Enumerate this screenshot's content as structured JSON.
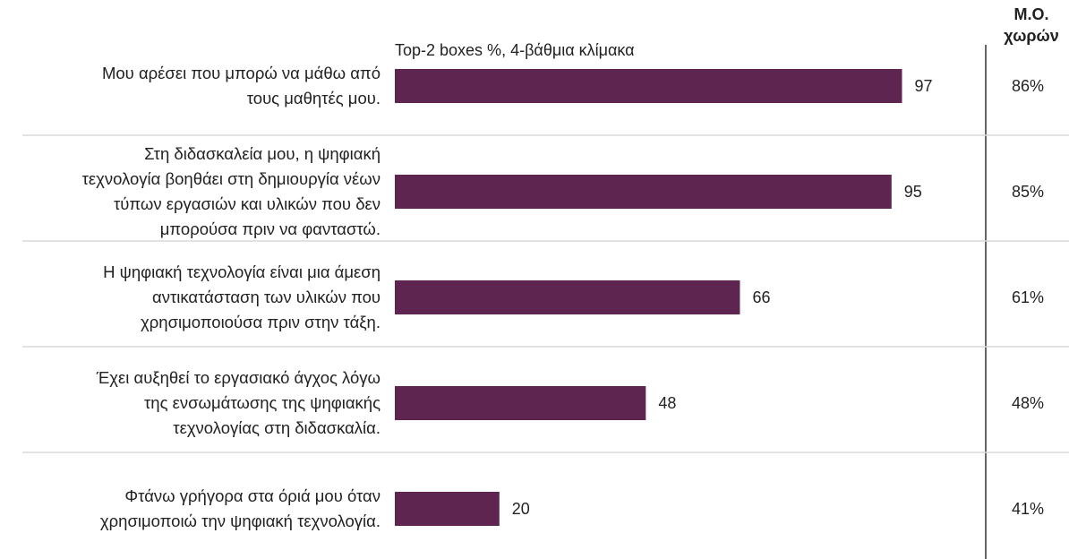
{
  "chart_data": {
    "type": "hbar",
    "subtitle": "Top-2 boxes %, 4-βάθμια κλίμακα",
    "categories": [
      "Μου αρέσει που μπορώ να μάθω από\nτους μαθητές μου.",
      "Στη διδασκαλεία μου, η ψηφιακή\nτεχνολογία βοηθάει στη δημιουργία νέων\nτύπων εργασιών και υλικών που δεν\nμπορούσα πριν να φανταστώ.",
      "Η ψηφιακή τεχνολογία είναι μια άμεση\nαντικατάσταση των υλικών που\nχρησιμοποιούσα πριν στην τάξη.",
      "Έχει αυξηθεί το εργασιακό άγχος λόγω\nτης ενσωμάτωσης της ψηφιακής\nτεχνολογίας στη διδασκαλία.",
      "Φτάνω γρήγορα στα όριά μου όταν\nχρησιμοποιώ την ψηφιακή τεχνολογία."
    ],
    "values": [
      97,
      95,
      66,
      48,
      20
    ],
    "color": "#5e2550",
    "xlim": [
      0,
      100
    ],
    "country_average": {
      "title": "Μ.Ο.\nχωρών",
      "values": [
        86,
        85,
        61,
        48,
        41
      ],
      "value_labels": [
        "86%",
        "85%",
        "61%",
        "48%",
        "41%"
      ]
    }
  }
}
